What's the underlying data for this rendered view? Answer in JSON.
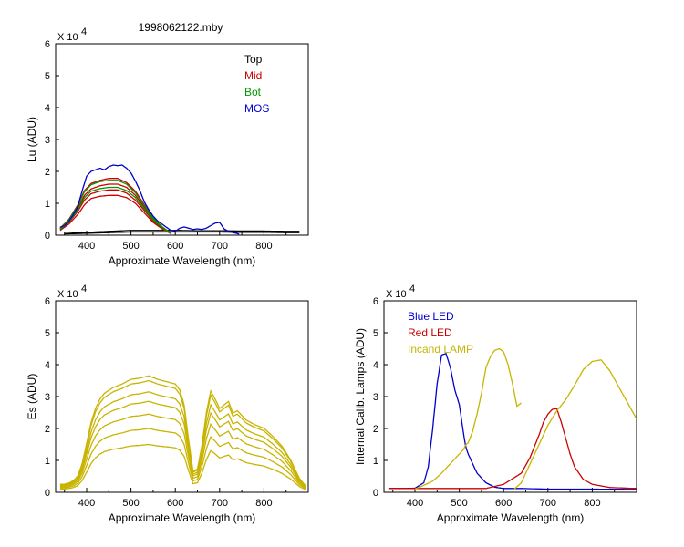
{
  "page_title": "1998062122.mby",
  "chart_data": [
    {
      "type": "line",
      "id": "lu",
      "ylabel": "Lu (ADU)",
      "xlabel": "Approximate Wavelength (nm)",
      "exponent_base": "X 10",
      "exponent_power": "4",
      "xlim": [
        330,
        900
      ],
      "ylim": [
        0,
        6
      ],
      "xticks": [
        400,
        500,
        600,
        700,
        800
      ],
      "yticks": [
        0,
        1,
        2,
        3,
        4,
        5,
        6
      ],
      "legend_position": "top-right",
      "series": [
        {
          "name": "Top",
          "color": "#000000",
          "curves": [
            {
              "x": [
                350,
                400,
                450,
                500,
                550,
                600,
                650,
                700,
                750,
                800,
                850,
                880
              ],
              "y": [
                0.05,
                0.09,
                0.12,
                0.15,
                0.15,
                0.15,
                0.14,
                0.14,
                0.13,
                0.13,
                0.12,
                0.12
              ]
            },
            {
              "x": [
                350,
                400,
                450,
                500,
                550,
                600,
                650,
                700,
                750,
                800,
                850,
                880
              ],
              "y": [
                0.04,
                0.06,
                0.08,
                0.1,
                0.1,
                0.1,
                0.1,
                0.1,
                0.09,
                0.09,
                0.08,
                0.08
              ]
            }
          ]
        },
        {
          "name": "Mid",
          "color": "#cc0000",
          "curves": [
            {
              "x": [
                340,
                360,
                380,
                395,
                410,
                430,
                450,
                470,
                490,
                510,
                530,
                550,
                570,
                590
              ],
              "y": [
                0.15,
                0.35,
                0.65,
                0.95,
                1.15,
                1.22,
                1.25,
                1.25,
                1.18,
                1.0,
                0.7,
                0.4,
                0.2,
                0.05
              ]
            },
            {
              "x": [
                340,
                360,
                380,
                395,
                410,
                430,
                450,
                470,
                490,
                510,
                530,
                550,
                570,
                590
              ],
              "y": [
                0.18,
                0.4,
                0.75,
                1.1,
                1.3,
                1.38,
                1.42,
                1.42,
                1.32,
                1.1,
                0.78,
                0.45,
                0.22,
                0.05
              ]
            },
            {
              "x": [
                340,
                360,
                380,
                395,
                410,
                430,
                450,
                470,
                490,
                510,
                530,
                550,
                570,
                590
              ],
              "y": [
                0.2,
                0.45,
                0.85,
                1.25,
                1.45,
                1.55,
                1.6,
                1.6,
                1.5,
                1.25,
                0.88,
                0.5,
                0.25,
                0.06
              ]
            },
            {
              "x": [
                340,
                360,
                380,
                395,
                410,
                430,
                450,
                470,
                490,
                510,
                530,
                550,
                570,
                590
              ],
              "y": [
                0.22,
                0.5,
                0.95,
                1.4,
                1.62,
                1.72,
                1.78,
                1.78,
                1.65,
                1.38,
                0.96,
                0.55,
                0.27,
                0.06
              ]
            }
          ]
        },
        {
          "name": "Bot",
          "color": "#009900",
          "curves": [
            {
              "x": [
                340,
                360,
                380,
                395,
                410,
                430,
                450,
                470,
                490,
                510,
                530,
                550,
                570,
                590
              ],
              "y": [
                0.18,
                0.42,
                0.8,
                1.18,
                1.38,
                1.46,
                1.5,
                1.5,
                1.4,
                1.18,
                0.82,
                0.48,
                0.24,
                0.06
              ]
            },
            {
              "x": [
                340,
                360,
                380,
                395,
                410,
                430,
                450,
                470,
                490,
                510,
                530,
                550,
                570,
                590
              ],
              "y": [
                0.21,
                0.48,
                0.92,
                1.36,
                1.58,
                1.68,
                1.72,
                1.72,
                1.6,
                1.33,
                0.93,
                0.54,
                0.26,
                0.06
              ]
            }
          ]
        },
        {
          "name": "MOS",
          "color": "#0000cc",
          "curves": [
            {
              "x": [
                340,
                350,
                360,
                370,
                380,
                390,
                400,
                410,
                420,
                430,
                440,
                450,
                460,
                470,
                480,
                490,
                500,
                510,
                520,
                530,
                540,
                550,
                560,
                570,
                580,
                590,
                600,
                610,
                620,
                630,
                640,
                650,
                660,
                670,
                680,
                690,
                700,
                710,
                720,
                730,
                740,
                745
              ],
              "y": [
                0.25,
                0.3,
                0.45,
                0.65,
                0.9,
                1.4,
                1.85,
                2.0,
                2.05,
                2.1,
                2.05,
                2.15,
                2.2,
                2.18,
                2.2,
                2.1,
                1.95,
                1.7,
                1.4,
                1.05,
                0.8,
                0.6,
                0.45,
                0.35,
                0.25,
                0.15,
                0.12,
                0.22,
                0.26,
                0.22,
                0.18,
                0.2,
                0.18,
                0.22,
                0.3,
                0.38,
                0.4,
                0.2,
                0.12,
                0.08,
                0.05,
                0.02
              ]
            }
          ]
        }
      ]
    },
    {
      "type": "line",
      "id": "es",
      "ylabel": "Es  (ADU)",
      "xlabel": "Approximate Wavelength (nm)",
      "exponent_base": "X 10",
      "exponent_power": "4",
      "xlim": [
        330,
        900
      ],
      "ylim": [
        0,
        6
      ],
      "xticks": [
        400,
        500,
        600,
        700,
        800
      ],
      "yticks": [
        0,
        1,
        2,
        3,
        4,
        5,
        6
      ],
      "color": "#c8b400",
      "shape_x": [
        340,
        350,
        360,
        370,
        380,
        390,
        400,
        410,
        420,
        430,
        440,
        460,
        480,
        500,
        520,
        540,
        560,
        580,
        600,
        610,
        620,
        630,
        640,
        650,
        660,
        670,
        680,
        690,
        700,
        710,
        720,
        730,
        740,
        760,
        780,
        800,
        820,
        840,
        860,
        880,
        895
      ],
      "shape_y": [
        0.07,
        0.07,
        0.08,
        0.1,
        0.14,
        0.25,
        0.42,
        0.6,
        0.72,
        0.8,
        0.85,
        0.9,
        0.93,
        0.97,
        0.98,
        1.0,
        0.97,
        0.95,
        0.93,
        0.88,
        0.75,
        0.45,
        0.18,
        0.2,
        0.4,
        0.68,
        0.87,
        0.8,
        0.72,
        0.75,
        0.78,
        0.68,
        0.7,
        0.62,
        0.58,
        0.55,
        0.48,
        0.4,
        0.28,
        0.12,
        0.05
      ],
      "scales": [
        1.5,
        2.0,
        2.45,
        2.85,
        3.15,
        3.5,
        3.65
      ]
    },
    {
      "type": "line",
      "id": "calib",
      "ylabel": "Internal Calib. Lamps (ADU)",
      "xlabel": "Approximate Wavelength (nm)",
      "exponent_base": "X 10",
      "exponent_power": "4",
      "xlim": [
        330,
        900
      ],
      "ylim": [
        0,
        6
      ],
      "xticks": [
        400,
        500,
        600,
        700,
        800
      ],
      "yticks": [
        0,
        1,
        2,
        3,
        4,
        5,
        6
      ],
      "legend_position": "top-left",
      "series": [
        {
          "name": "Blue LED",
          "color": "#0000cc",
          "x": [
            340,
            380,
            400,
            420,
            430,
            440,
            450,
            460,
            470,
            480,
            490,
            500,
            510,
            515,
            520,
            530,
            540,
            560,
            580,
            600,
            640,
            700,
            800,
            900
          ],
          "y": [
            0.12,
            0.12,
            0.13,
            0.3,
            0.8,
            2.0,
            3.4,
            4.3,
            4.35,
            3.9,
            3.2,
            2.75,
            1.8,
            1.4,
            1.2,
            0.9,
            0.6,
            0.3,
            0.16,
            0.12,
            0.12,
            0.1,
            0.1,
            0.09
          ]
        },
        {
          "name": "Red LED",
          "color": "#cc0000",
          "x": [
            340,
            500,
            560,
            600,
            640,
            660,
            680,
            690,
            700,
            710,
            720,
            730,
            740,
            750,
            760,
            780,
            800,
            840,
            900
          ],
          "y": [
            0.12,
            0.12,
            0.12,
            0.25,
            0.6,
            1.1,
            1.8,
            2.2,
            2.45,
            2.6,
            2.62,
            2.2,
            1.7,
            1.2,
            0.8,
            0.4,
            0.25,
            0.15,
            0.12
          ]
        },
        {
          "name": "Incand LAMP",
          "color": "#c8b400",
          "curves": [
            {
              "x": [
                400,
                420,
                440,
                460,
                480,
                500,
                510,
                515,
                520,
                530,
                540,
                550,
                560,
                570,
                580,
                590,
                600,
                610,
                620,
                630,
                640
              ],
              "y": [
                0.1,
                0.22,
                0.35,
                0.6,
                0.9,
                1.2,
                1.35,
                1.5,
                1.55,
                1.9,
                2.45,
                3.1,
                3.9,
                4.25,
                4.45,
                4.5,
                4.4,
                4.0,
                3.4,
                2.7,
                2.8
              ]
            },
            {
              "x": [
                620,
                640,
                660,
                680,
                700,
                720,
                740,
                760,
                780,
                800,
                820,
                840,
                860,
                880,
                900
              ],
              "y": [
                0.05,
                0.3,
                0.9,
                1.5,
                2.1,
                2.55,
                2.9,
                3.35,
                3.85,
                4.1,
                4.15,
                3.8,
                3.3,
                2.8,
                2.3
              ]
            }
          ]
        }
      ]
    }
  ]
}
